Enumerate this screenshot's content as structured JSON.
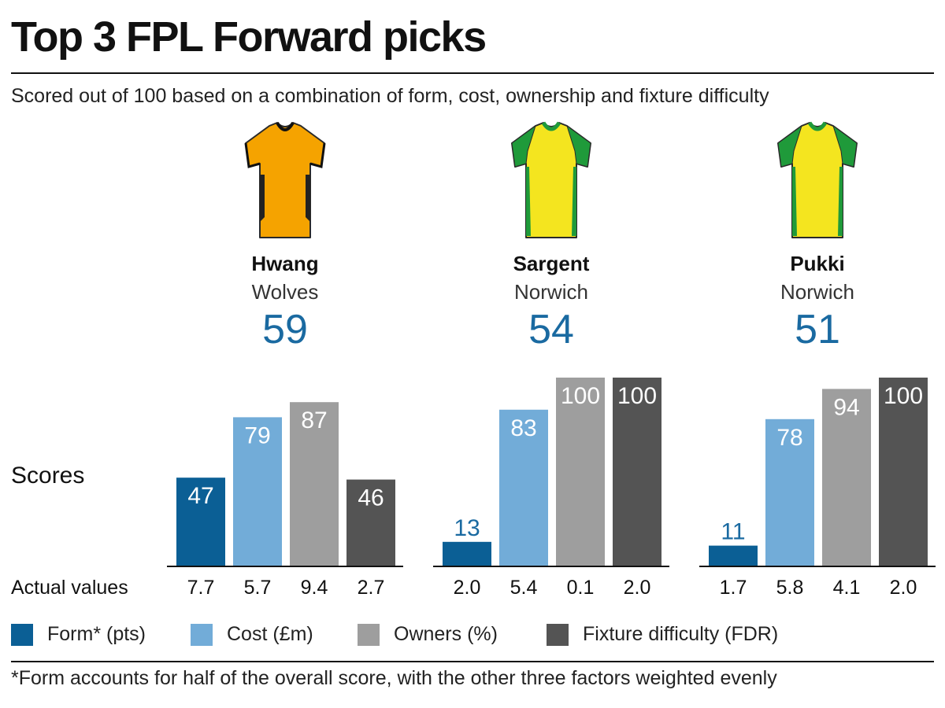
{
  "title": "Top 3 FPL Forward picks",
  "subtitle": "Scored out of 100 based on a combination of form, cost, ownership and fixture difficulty",
  "footnote": "*Form accounts for half of the overall score, with the other three factors weighted evenly",
  "row_labels": {
    "scores": "Scores",
    "actual": "Actual values"
  },
  "colors": {
    "form": "#0b5f95",
    "cost": "#72acd8",
    "owners": "#9e9e9e",
    "fixture": "#545454",
    "accent": "#1a6aa1"
  },
  "legend": [
    {
      "label": "Form* (pts)",
      "color": "#0b5f95",
      "icon": "form-swatch"
    },
    {
      "label": "Cost (£m)",
      "color": "#72acd8",
      "icon": "cost-swatch"
    },
    {
      "label": "Owners (%)",
      "color": "#9e9e9e",
      "icon": "owners-swatch"
    },
    {
      "label": "Fixture difficulty (FDR)",
      "color": "#545454",
      "icon": "fixture-swatch"
    }
  ],
  "chart_data": {
    "type": "bar",
    "categories": [
      "Form* (pts)",
      "Cost (£m)",
      "Owners (%)",
      "Fixture difficulty (FDR)"
    ],
    "ylim": [
      0,
      100
    ],
    "grid": false,
    "legend_position": "bottom",
    "players": [
      {
        "name": "Hwang",
        "team": "Wolves",
        "score": "59",
        "shirt": "wolves-shirt-icon",
        "values": [
          47,
          79,
          87,
          46
        ],
        "actual": [
          "7.7",
          "5.7",
          "9.4",
          "2.7"
        ]
      },
      {
        "name": "Sargent",
        "team": "Norwich",
        "score": "54",
        "shirt": "norwich-shirt-icon",
        "values": [
          13,
          83,
          100,
          100
        ],
        "actual": [
          "2.0",
          "5.4",
          "0.1",
          "2.0"
        ]
      },
      {
        "name": "Pukki",
        "team": "Norwich",
        "score": "51",
        "shirt": "norwich-shirt-icon",
        "values": [
          11,
          78,
          94,
          100
        ],
        "actual": [
          "1.7",
          "5.8",
          "4.1",
          "2.0"
        ]
      }
    ]
  }
}
